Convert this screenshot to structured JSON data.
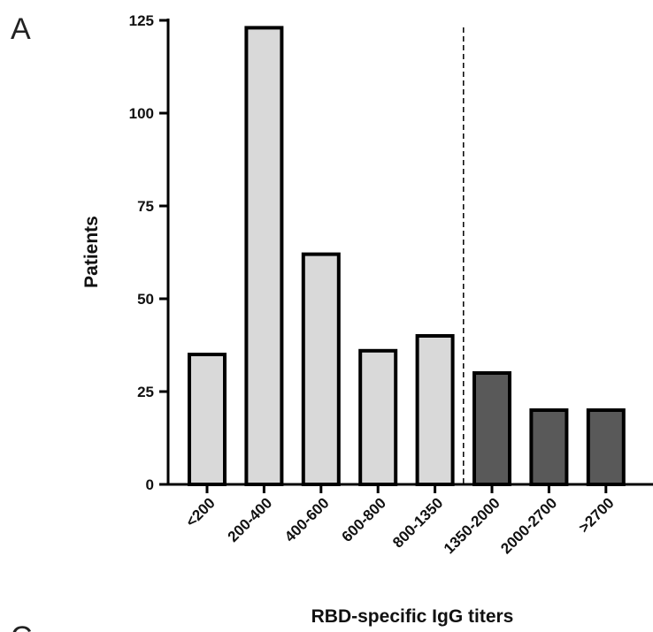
{
  "panel_label": "A",
  "next_panel_label": "C",
  "chart_data": {
    "type": "bar",
    "categories": [
      "<200",
      "200-400",
      "400-600",
      "600-800",
      "800-1350",
      "1350-2000",
      "2000-2700",
      ">2700"
    ],
    "values": [
      35,
      123,
      62,
      36,
      40,
      30,
      20,
      20
    ],
    "xlabel": "RBD-specific IgG titers",
    "ylabel": "Patients",
    "ylim": [
      0,
      125
    ],
    "yticks": [
      0,
      25,
      50,
      75,
      100,
      125
    ],
    "grid": false,
    "threshold_between": [
      "800-1350",
      "1350-2000"
    ],
    "colors": {
      "below_threshold": "#d9d9d9",
      "above_threshold": "#595959",
      "outline": "#000000"
    }
  }
}
